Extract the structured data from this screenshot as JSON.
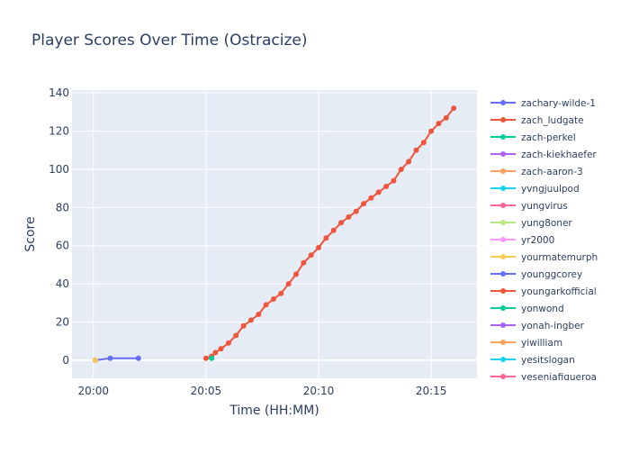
{
  "chart_data": {
    "type": "line",
    "title": "Player Scores Over Time (Ostracize)",
    "xlabel": "Time (HH:MM)",
    "ylabel": "Score",
    "x_ticks": [
      "20:00",
      "20:05",
      "20:10",
      "20:15"
    ],
    "y_ticks": [
      0,
      20,
      40,
      60,
      80,
      100,
      120,
      140
    ],
    "xlim": [
      "19:59:03",
      "20:17:02"
    ],
    "ylim": [
      -9.5,
      141.5
    ],
    "grid": true,
    "legend_position": "right",
    "series": [
      {
        "name": "zachary-wilde-1",
        "color": "#636efa",
        "points": [
          [
            "20:00:05",
            0
          ],
          [
            "20:00:45",
            1
          ],
          [
            "20:02:00",
            1
          ]
        ]
      },
      {
        "name": "zach_ludgate",
        "color": "#EF553B",
        "points": [
          [
            "20:05:00",
            1
          ],
          [
            "20:05:15",
            2
          ],
          [
            "20:05:25",
            4
          ],
          [
            "20:05:40",
            6
          ],
          [
            "20:06:00",
            9
          ],
          [
            "20:06:20",
            13
          ],
          [
            "20:06:40",
            18
          ],
          [
            "20:07:00",
            21
          ],
          [
            "20:07:20",
            24
          ],
          [
            "20:07:40",
            29
          ],
          [
            "20:08:00",
            32
          ],
          [
            "20:08:20",
            35
          ],
          [
            "20:08:40",
            40
          ],
          [
            "20:09:00",
            45
          ],
          [
            "20:09:20",
            51
          ],
          [
            "20:09:40",
            55
          ],
          [
            "20:10:00",
            59
          ],
          [
            "20:10:20",
            64
          ],
          [
            "20:10:40",
            68
          ],
          [
            "20:11:00",
            72
          ],
          [
            "20:11:20",
            75
          ],
          [
            "20:11:40",
            78
          ],
          [
            "20:12:00",
            82
          ],
          [
            "20:12:20",
            85
          ],
          [
            "20:12:40",
            88
          ],
          [
            "20:13:00",
            91
          ],
          [
            "20:13:20",
            94
          ],
          [
            "20:13:40",
            100
          ],
          [
            "20:14:00",
            104
          ],
          [
            "20:14:20",
            110
          ],
          [
            "20:14:40",
            114
          ],
          [
            "20:15:00",
            120
          ],
          [
            "20:15:20",
            124
          ],
          [
            "20:15:40",
            127
          ],
          [
            "20:16:00",
            132
          ]
        ]
      },
      {
        "name": "zach-perkel",
        "color": "#00cc96",
        "points": [
          [
            "20:05:15",
            1
          ]
        ]
      },
      {
        "name": "zach-kiekhaefer",
        "color": "#ab63fa",
        "points": [
          [
            "20:00:05",
            0
          ]
        ]
      },
      {
        "name": "zach-aaron-3",
        "color": "#FFA15A",
        "points": [
          [
            "20:00:05",
            0
          ]
        ]
      },
      {
        "name": "yvngjuulpod",
        "color": "#19d3f3",
        "points": [
          [
            "20:00:05",
            0
          ]
        ]
      },
      {
        "name": "yungvirus",
        "color": "#FF6692",
        "points": [
          [
            "20:00:05",
            0
          ]
        ]
      },
      {
        "name": "yung8oner",
        "color": "#B6E880",
        "points": [
          [
            "20:00:05",
            0
          ]
        ]
      },
      {
        "name": "yr2000",
        "color": "#FF97FF",
        "points": [
          [
            "20:00:05",
            0
          ]
        ]
      },
      {
        "name": "yourmatemurph",
        "color": "#FECB52",
        "points": [
          [
            "20:00:05",
            0
          ]
        ]
      },
      {
        "name": "younggcorey",
        "color": "#636efa",
        "points": []
      },
      {
        "name": "youngarkofficial",
        "color": "#EF553B",
        "points": []
      },
      {
        "name": "yonwond",
        "color": "#00cc96",
        "points": []
      },
      {
        "name": "yonah-ingber",
        "color": "#ab63fa",
        "points": []
      },
      {
        "name": "yiwilliam",
        "color": "#FFA15A",
        "points": []
      },
      {
        "name": "yesitslogan",
        "color": "#19d3f3",
        "points": []
      },
      {
        "name": "yesenjafigueroa",
        "color": "#FF6692",
        "points": []
      }
    ]
  }
}
